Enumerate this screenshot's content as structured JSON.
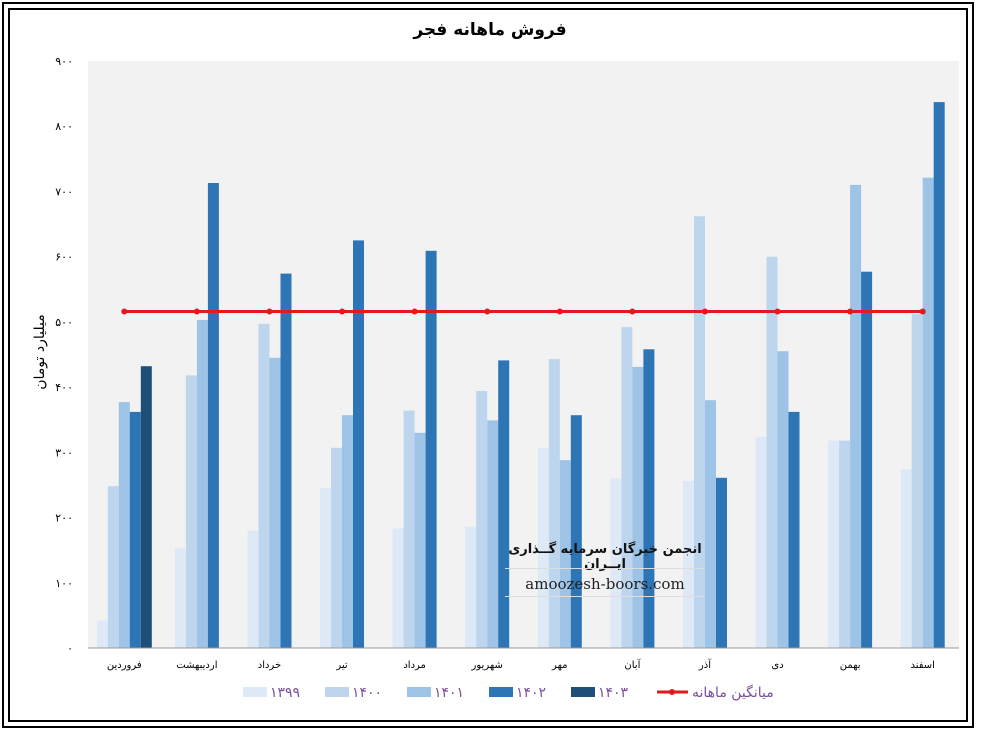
{
  "chart_data": {
    "type": "bar",
    "title": "فروش ماهانه فجر",
    "ylabel": "میلیارد تومان",
    "xlabel": "",
    "ylim": [
      0,
      900
    ],
    "yticks": [
      0,
      100,
      200,
      300,
      400,
      500,
      600,
      700,
      800,
      900
    ],
    "ytick_labels": [
      "0",
      "100",
      "200",
      "300",
      "400",
      "500",
      "600",
      "700",
      "800",
      "900"
    ],
    "grid": false,
    "legend": "bottom",
    "categories": [
      "فروردین",
      "اردیبهشت",
      "خرداد",
      "تیر",
      "مرداد",
      "شهریور",
      "مهر",
      "آبان",
      "آذر",
      "دی",
      "بهمن",
      "اسفند"
    ],
    "series": [
      {
        "name": "1399",
        "color": "#dde9f6",
        "values": [
          42,
          153,
          180,
          245,
          183,
          186,
          307,
          260,
          256,
          324,
          318,
          274
        ]
      },
      {
        "name": "1400",
        "color": "#bdd6ee",
        "values": [
          248,
          418,
          497,
          307,
          364,
          394,
          443,
          492,
          662,
          600,
          318,
          512
        ]
      },
      {
        "name": "1401",
        "color": "#9dc3e6",
        "values": [
          377,
          503,
          445,
          357,
          330,
          349,
          288,
          431,
          380,
          455,
          710,
          721
        ]
      },
      {
        "name": "1402",
        "color": "#2e75b6",
        "values": [
          362,
          713,
          574,
          625,
          609,
          441,
          357,
          458,
          261,
          362,
          577,
          837
        ]
      },
      {
        "name": "1403",
        "color": "#1f4e79",
        "values": [
          432,
          null,
          null,
          null,
          null,
          null,
          null,
          null,
          null,
          null,
          null,
          null
        ]
      }
    ],
    "average": {
      "name": "میانگین ماهانه",
      "color": "#e31a1c",
      "values": [
        516,
        516,
        516,
        516,
        516,
        516,
        516,
        516,
        516,
        516,
        516,
        516
      ]
    }
  },
  "watermark": {
    "line1": "انجمن خبرگان سرمایه گــذاری ایــران",
    "line2": "amoozesh-boors.com"
  }
}
